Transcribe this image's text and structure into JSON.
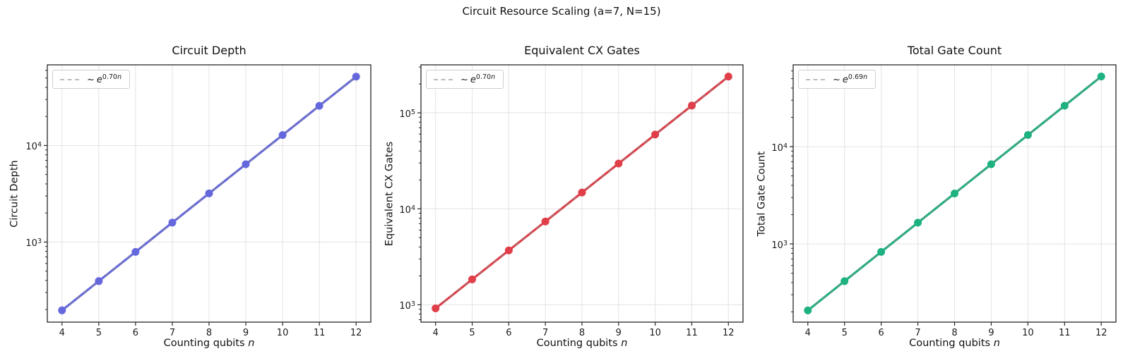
{
  "suptitle": "Circuit Resource Scaling (a=7, N=15)",
  "style": {
    "background": "#ffffff",
    "grid_color": "#e3e3e3",
    "spine_color": "#262626",
    "tick_color": "#262626",
    "fit_line_color": "#8a8a8a",
    "legend_dash_color": "#b3b3b3"
  },
  "chart_data": [
    {
      "type": "line",
      "title": "Circuit Depth",
      "ylabel": "Circuit Depth",
      "xlabel_text": "Counting qubits",
      "xlabel_var": "n",
      "yscale": "log",
      "grid": true,
      "legend_position": "upper left",
      "x": [
        4,
        5,
        6,
        7,
        8,
        9,
        10,
        11,
        12
      ],
      "values": [
        196,
        394,
        790,
        1590,
        3190,
        6400,
        12840,
        25780,
        51750
      ],
      "color": "#6568dd",
      "fit": {
        "prefix": "~",
        "base": "e",
        "exponent": "0.70",
        "var": "n"
      },
      "xlim": [
        3.6,
        12.4
      ],
      "ylim": [
        148,
        68500
      ],
      "xticks": [
        4,
        5,
        6,
        7,
        8,
        9,
        10,
        11,
        12
      ],
      "ytick_exponents": [
        3,
        4
      ]
    },
    {
      "type": "line",
      "title": "Equivalent CX Gates",
      "ylabel": "Equivalent CX Gates",
      "xlabel_text": "Counting qubits",
      "xlabel_var": "n",
      "yscale": "log",
      "grid": true,
      "legend_position": "upper left",
      "x": [
        4,
        5,
        6,
        7,
        8,
        9,
        10,
        11,
        12
      ],
      "values": [
        918,
        1840,
        3690,
        7380,
        14800,
        29650,
        59400,
        119000,
        238500
      ],
      "color": "#e03e48",
      "fit": {
        "prefix": "~",
        "base": "e",
        "exponent": "0.70",
        "var": "n"
      },
      "xlim": [
        3.6,
        12.4
      ],
      "ylim": [
        660,
        316000
      ],
      "xticks": [
        4,
        5,
        6,
        7,
        8,
        9,
        10,
        11,
        12
      ],
      "ytick_exponents": [
        3,
        4,
        5
      ]
    },
    {
      "type": "line",
      "title": "Total Gate Count",
      "ylabel": "Total Gate Count",
      "xlabel_text": "Counting qubits",
      "xlabel_var": "n",
      "yscale": "log",
      "grid": true,
      "legend_position": "upper left",
      "x": [
        4,
        5,
        6,
        7,
        8,
        9,
        10,
        11,
        12
      ],
      "values": [
        207,
        414,
        827,
        1652,
        3301,
        6596,
        13180,
        26333,
        52600
      ],
      "color": "#1eb181",
      "fit": {
        "prefix": "~",
        "base": "e",
        "exponent": "0.69",
        "var": "n"
      },
      "xlim": [
        3.6,
        12.4
      ],
      "ylim": [
        157,
        69300
      ],
      "xticks": [
        4,
        5,
        6,
        7,
        8,
        9,
        10,
        11,
        12
      ],
      "ytick_exponents": [
        3,
        4
      ]
    }
  ]
}
